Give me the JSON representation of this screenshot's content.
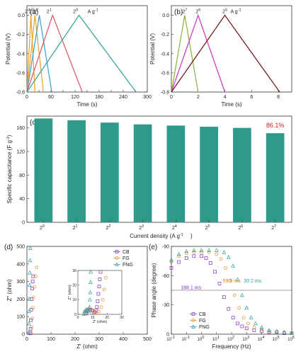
{
  "chart_data": [
    {
      "panel": "(a)",
      "type": "line",
      "xlabel": "Time (s)",
      "ylabel": "Potential (V)",
      "xlim": [
        0,
        300
      ],
      "ylim": [
        -0.8,
        0.1
      ],
      "xticks": [
        0,
        30,
        60,
        90,
        120,
        150,
        180,
        210,
        240,
        270,
        300
      ],
      "xtick_labels": [
        "0",
        "",
        "60",
        "",
        "120",
        "",
        "180",
        "",
        "240",
        "",
        "300"
      ],
      "yticks": [
        -0.8,
        -0.6,
        -0.4,
        -0.2,
        0.0
      ],
      "ytick_labels": [
        "-0.8",
        "-0.6",
        "-0.4",
        "-0.2",
        "0.0"
      ],
      "unit_label": "A g",
      "unit_exp": "-1",
      "series": [
        {
          "base": "2",
          "exp": "4",
          "color": "#f0a020",
          "x": [
            0,
            10,
            20
          ],
          "y": [
            -0.8,
            0.0,
            -0.8
          ]
        },
        {
          "base": "2",
          "exp": "3",
          "color": "#e8a030",
          "x": [
            0,
            20,
            41
          ],
          "y": [
            -0.8,
            0.0,
            -0.8
          ]
        },
        {
          "base": "2",
          "exp": "2",
          "color": "#30a0d8",
          "x": [
            0,
            31,
            62
          ],
          "y": [
            -0.8,
            0.0,
            -0.8
          ]
        },
        {
          "base": "2",
          "exp": "1",
          "color": "#e05060",
          "x": [
            0,
            64,
            138
          ],
          "y": [
            -0.8,
            0.0,
            -0.8
          ]
        },
        {
          "base": "2",
          "exp": "0",
          "color": "#2aa198",
          "x": [
            0,
            130,
            272
          ],
          "y": [
            -0.8,
            0.0,
            -0.8
          ]
        }
      ]
    },
    {
      "panel": "(b)",
      "type": "line",
      "xlabel": "Time (s)",
      "ylabel": "Potential (V)",
      "xlim": [
        0,
        9
      ],
      "ylim": [
        -0.8,
        0.1
      ],
      "xticks": [
        0,
        2,
        4,
        6,
        8
      ],
      "xtick_labels": [
        "0",
        "2",
        "4",
        "6",
        "8"
      ],
      "yticks": [
        -0.8,
        -0.6,
        -0.4,
        -0.2,
        0.0
      ],
      "ytick_labels": [
        "-0.8",
        "-0.6",
        "-0.4",
        "-0.2",
        "0.0"
      ],
      "unit_label": "A g",
      "unit_exp": "-1",
      "series": [
        {
          "base": "2",
          "exp": "7",
          "color": "#88b030",
          "x": [
            0,
            1.0,
            2.0
          ],
          "y": [
            -0.8,
            0.0,
            -0.8
          ]
        },
        {
          "base": "2",
          "exp": "6",
          "color": "#d030c0",
          "x": [
            0,
            2.0,
            4.0
          ],
          "y": [
            -0.8,
            0.0,
            -0.8
          ]
        },
        {
          "base": "2",
          "exp": "5",
          "color": "#6a1010",
          "x": [
            0,
            4.0,
            8.1
          ],
          "y": [
            -0.8,
            0.0,
            -0.8
          ]
        }
      ]
    },
    {
      "panel": "(c)",
      "type": "bar",
      "xlabel": "Current density (A g",
      "xlabel_exp": "-1",
      "ylabel": "Specific capacitance (F g",
      "ylabel_exp": "-1",
      "ylim": [
        0,
        180
      ],
      "yticks": [
        0,
        40,
        80,
        120,
        160
      ],
      "categories": [
        {
          "base": "2",
          "exp": "0"
        },
        {
          "base": "2",
          "exp": "1"
        },
        {
          "base": "2",
          "exp": "2"
        },
        {
          "base": "2",
          "exp": "3"
        },
        {
          "base": "2",
          "exp": "4"
        },
        {
          "base": "2",
          "exp": "5"
        },
        {
          "base": "2",
          "exp": "6"
        },
        {
          "base": "2",
          "exp": "7"
        }
      ],
      "values": [
        176,
        173,
        169,
        166,
        164,
        162,
        160,
        151
      ],
      "bar_color": "#2e9a8c",
      "annotation": "86.1%",
      "annotation_color": "#d02020"
    },
    {
      "panel": "(d)",
      "type": "scatter",
      "xlabel": "Z' (ohm)",
      "ylabel": "Z'' (ohm)",
      "xlim": [
        0,
        500
      ],
      "ylim": [
        0,
        500
      ],
      "xticks": [
        0,
        100,
        200,
        300,
        400,
        500
      ],
      "yticks": [
        0,
        100,
        200,
        300,
        400,
        500
      ],
      "inset": {
        "xlabel": "Z' (ohm)",
        "ylabel": "Z'' (ohm)",
        "xlim": [
          0,
          30
        ],
        "ylim": [
          0,
          30
        ],
        "xticks": [
          0,
          10,
          20,
          30
        ],
        "yticks": [
          0,
          10,
          20,
          30
        ]
      },
      "series": [
        {
          "name": "CB",
          "color": "#8030c0",
          "marker": "square",
          "x": [
            5.5,
            6.0,
            7.0,
            8.5,
            10.0,
            11.5,
            12.5,
            13.0,
            13.5,
            14.0,
            14.5,
            15.0,
            15.5
          ],
          "y": [
            0.5,
            2.0,
            3.0,
            3.2,
            2.5,
            1.5,
            2.5,
            5.0,
            9.0,
            14.0,
            19.0,
            24.0,
            29.0
          ]
        },
        {
          "name": "FG",
          "color": "#e08820",
          "marker": "circle",
          "x": [
            4.5,
            5.0,
            6.0,
            7.5,
            9.5,
            11.0,
            12.5,
            14.5,
            16.0,
            17.0,
            18.0,
            19.0
          ],
          "y": [
            0.5,
            2.0,
            3.2,
            3.8,
            3.2,
            1.5,
            1.0,
            2.0,
            5.0,
            10.0,
            17.0,
            25.0
          ]
        },
        {
          "name": "FNG",
          "color": "#2aa0a0",
          "marker": "triangle",
          "x": [
            4.0,
            4.5,
            5.5,
            6.5,
            7.5,
            8.0,
            8.2,
            8.4,
            8.6,
            8.8
          ],
          "y": [
            0.3,
            2.0,
            3.0,
            3.0,
            2.0,
            5.0,
            10.0,
            15.0,
            22.0,
            29.0
          ]
        }
      ],
      "main_series_y": [
        {
          "name": "CB",
          "x": [
            14,
            15,
            16,
            18,
            20,
            22,
            24,
            26
          ],
          "y": [
            5,
            30,
            80,
            140,
            200,
            260,
            300,
            330
          ]
        },
        {
          "name": "FG",
          "x": [
            17,
            19,
            22,
            25,
            28,
            32,
            36,
            40
          ],
          "y": [
            8,
            40,
            90,
            150,
            210,
            270,
            330,
            380
          ]
        },
        {
          "name": "FNG",
          "x": [
            8,
            8.5,
            9,
            10,
            11,
            12,
            13,
            14
          ],
          "y": [
            10,
            60,
            130,
            200,
            280,
            350,
            420,
            490
          ]
        }
      ]
    },
    {
      "panel": "(e)",
      "type": "scatter",
      "xlabel": "Frequency (Hz)",
      "ylabel": "Phase angle (degree)",
      "xlim_log": [
        -2,
        6
      ],
      "ylim": [
        0,
        -90
      ],
      "yticks": [
        0,
        -30,
        -60,
        -90
      ],
      "xticks_log": [
        -2,
        -1,
        0,
        1,
        2,
        3,
        4,
        5,
        6
      ],
      "hline": -45,
      "annotations": [
        {
          "text": "188.1 ms",
          "color": "#8030c0",
          "x_log": -0.7,
          "y": -46
        },
        {
          "text": "59.9 ms",
          "color": "#e08820",
          "x_log": 2.0,
          "y": -53
        },
        {
          "text": "30.2 ms",
          "color": "#2aa0a0",
          "x_log": 3.4,
          "y": -53
        }
      ],
      "series": [
        {
          "name": "CB",
          "color": "#8030c0",
          "marker": "square",
          "x_log": [
            -2,
            -1.5,
            -1,
            -0.5,
            0,
            0.3,
            0.6,
            0.9,
            1.2,
            1.5,
            1.8,
            2.1,
            2.4,
            2.7,
            3,
            3.5,
            4,
            4.5,
            5,
            5.5,
            6
          ],
          "y": [
            -68,
            -74,
            -78,
            -80,
            -80,
            -78,
            -73,
            -64,
            -52,
            -38,
            -26,
            -17,
            -11,
            -8,
            -6,
            -4,
            -3,
            -2,
            -2,
            -1,
            -1
          ]
        },
        {
          "name": "FG",
          "color": "#e08820",
          "marker": "circle",
          "x_log": [
            -2,
            -1.5,
            -1,
            -0.5,
            0,
            0.5,
            1,
            1.3,
            1.6,
            1.9,
            2.2,
            2.5,
            2.8,
            3.1,
            3.5,
            4,
            4.5,
            5,
            5.5,
            6
          ],
          "y": [
            -74,
            -80,
            -83,
            -84,
            -84,
            -84,
            -82,
            -77,
            -68,
            -55,
            -40,
            -27,
            -17,
            -11,
            -7,
            -5,
            -3,
            -2,
            -2,
            -1
          ]
        },
        {
          "name": "FNG",
          "color": "#2aa0a0",
          "marker": "triangle",
          "x_log": [
            -2,
            -1.5,
            -1,
            -0.5,
            0,
            0.5,
            1,
            1.5,
            1.8,
            2.1,
            2.4,
            2.7,
            3,
            3.3,
            3.6,
            4,
            4.5,
            5,
            5.5,
            6
          ],
          "y": [
            -76,
            -82,
            -85,
            -86,
            -86,
            -86,
            -86,
            -84,
            -79,
            -70,
            -56,
            -40,
            -27,
            -17,
            -11,
            -7,
            -4,
            -3,
            -2,
            -1
          ]
        }
      ]
    }
  ]
}
